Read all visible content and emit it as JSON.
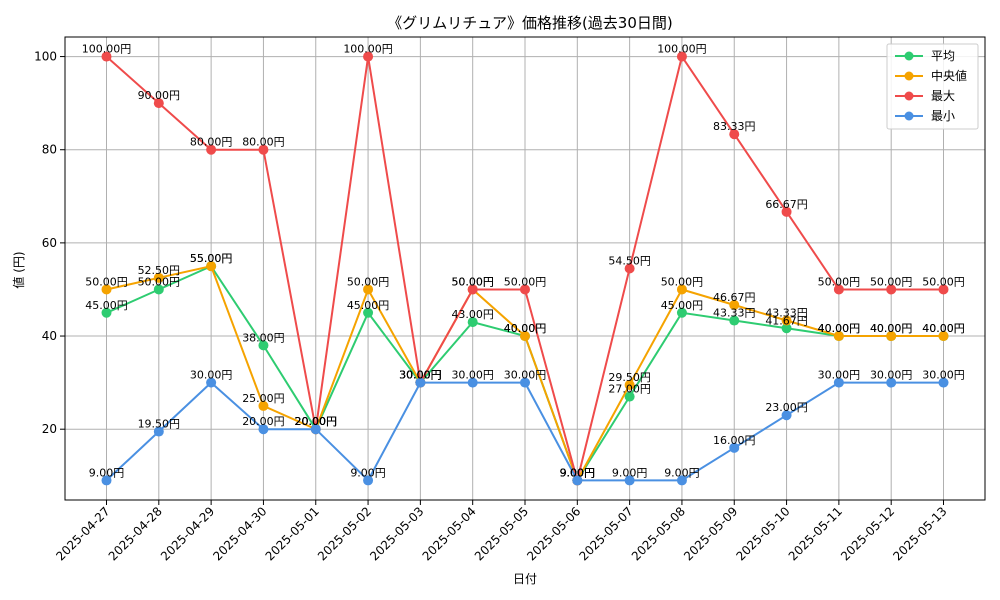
{
  "chart_data": {
    "type": "line",
    "title": "《グリムリチュア》価格推移(過去30日間)",
    "xlabel": "日付",
    "ylabel": "値 (円)",
    "ylim": [
      4.8,
      104.2
    ],
    "yticks": [
      20,
      40,
      60,
      80,
      100
    ],
    "grid": true,
    "legend_position": "top-right",
    "label_suffix": "円",
    "categories": [
      "2025-04-27",
      "2025-04-28",
      "2025-04-29",
      "2025-04-30",
      "2025-05-01",
      "2025-05-02",
      "2025-05-03",
      "2025-05-04",
      "2025-05-05",
      "2025-05-06",
      "2025-05-07",
      "2025-05-08",
      "2025-05-09",
      "2025-05-10",
      "2025-05-11",
      "2025-05-12",
      "2025-05-13"
    ],
    "series": [
      {
        "name": "平均",
        "color": "#2ecc71",
        "values": [
          45.0,
          50.0,
          55.0,
          38.0,
          20.0,
          45.0,
          30.0,
          43.0,
          40.0,
          9.0,
          27.0,
          45.0,
          43.33,
          41.67,
          40.0,
          40.0,
          40.0
        ]
      },
      {
        "name": "中央値",
        "color": "#f5a300",
        "values": [
          50.0,
          52.5,
          55.0,
          25.0,
          20.0,
          50.0,
          30.0,
          50.0,
          40.0,
          9.0,
          29.5,
          50.0,
          46.67,
          43.33,
          40.0,
          40.0,
          40.0
        ]
      },
      {
        "name": "最大",
        "color": "#ef4b4b",
        "values": [
          100.0,
          90.0,
          80.0,
          80.0,
          20.0,
          100.0,
          30.0,
          50.0,
          50.0,
          9.0,
          54.5,
          100.0,
          83.33,
          66.67,
          50.0,
          50.0,
          50.0
        ]
      },
      {
        "name": "最小",
        "color": "#4a90e2",
        "values": [
          9.0,
          19.5,
          30.0,
          20.0,
          20.0,
          9.0,
          30.0,
          30.0,
          30.0,
          9.0,
          9.0,
          9.0,
          16.0,
          23.0,
          30.0,
          30.0,
          30.0
        ]
      }
    ]
  }
}
